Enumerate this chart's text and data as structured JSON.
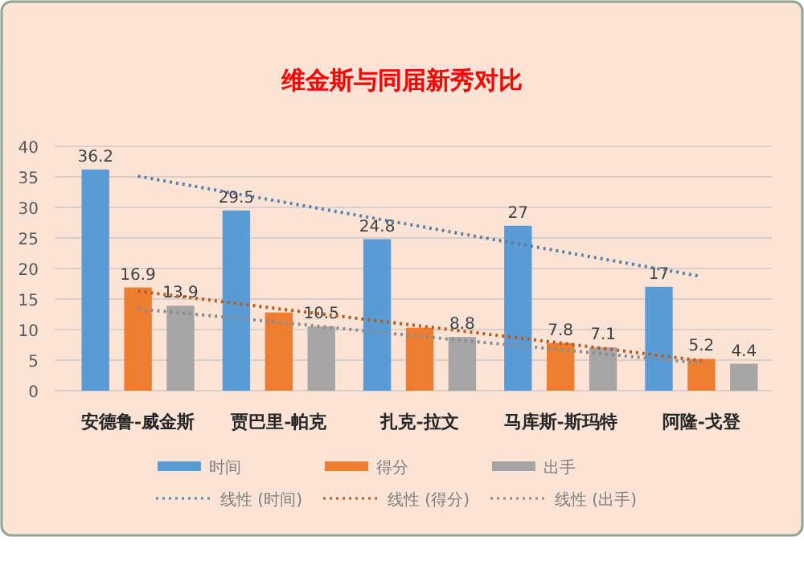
{
  "chart_data": {
    "type": "bar",
    "title": "维金斯与同届新秀对比",
    "categories": [
      "安德鲁-威金斯",
      "贾巴里-帕克",
      "扎克-拉文",
      "马库斯-斯玛特",
      "阿隆-戈登"
    ],
    "series": [
      {
        "name": "时间",
        "color": "#5b9bd5",
        "values": [
          36.2,
          29.5,
          24.8,
          27,
          17
        ],
        "value_labels": [
          "36.2",
          "29.5",
          "24.8",
          "27",
          "17"
        ]
      },
      {
        "name": "得分",
        "color": "#ed7d31",
        "values": [
          16.9,
          12.8,
          10.3,
          7.8,
          5.2
        ],
        "value_labels": [
          "16.9",
          null,
          null,
          "7.8",
          "5.2"
        ]
      },
      {
        "name": "出手",
        "color": "#a5a5a5",
        "values": [
          13.9,
          10.5,
          8.8,
          7.1,
          4.4
        ],
        "value_labels": [
          "13.9",
          "10.5",
          "8.8",
          "7.1",
          "4.4"
        ]
      },
      {
        "name": "线性 (时间)",
        "type": "line",
        "line_style": "dotted",
        "color": "#5b7fa6",
        "values": [
          35.1,
          31,
          26.9,
          22.8,
          18.7
        ]
      },
      {
        "name": "线性 (得分)",
        "type": "line",
        "line_style": "dotted",
        "color": "#b85a1c",
        "values": [
          16.3,
          13.4,
          10.6,
          7.8,
          4.9
        ]
      },
      {
        "name": "线性 (出手)",
        "type": "line",
        "line_style": "dotted",
        "color": "#8c8c8c",
        "values": [
          13.4,
          11.2,
          8.9,
          6.7,
          4.5
        ]
      }
    ],
    "ylim": [
      0,
      40
    ],
    "yticks": [
      0,
      5,
      10,
      15,
      20,
      25,
      30,
      35,
      40
    ],
    "grid": "y",
    "legend": "bottom"
  }
}
